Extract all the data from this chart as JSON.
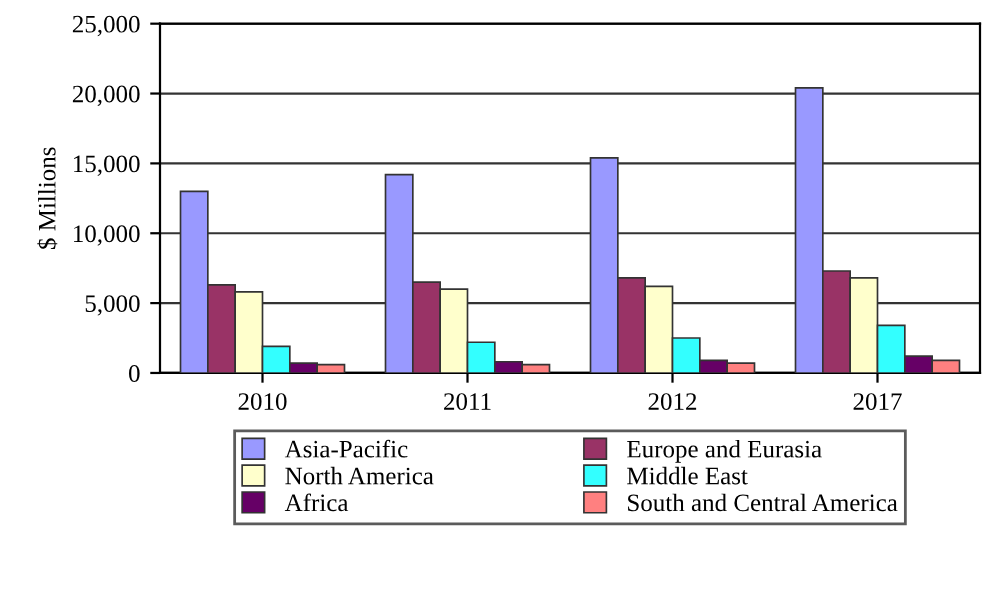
{
  "chart_data": {
    "type": "bar",
    "ylabel": "$ Millions",
    "categories": [
      "2010",
      "2011",
      "2012",
      "2017"
    ],
    "series": [
      {
        "name": "Asia-Pacific",
        "color": "#9999ff",
        "values": [
          13000,
          14200,
          15400,
          20400
        ]
      },
      {
        "name": "Europe and Eurasia",
        "color": "#993366",
        "values": [
          6300,
          6500,
          6800,
          7300
        ]
      },
      {
        "name": "North America",
        "color": "#ffffcc",
        "values": [
          5800,
          6000,
          6200,
          6800
        ]
      },
      {
        "name": "Middle East",
        "color": "#33ffff",
        "values": [
          1900,
          2200,
          2500,
          3400
        ]
      },
      {
        "name": "Africa",
        "color": "#660066",
        "values": [
          700,
          800,
          900,
          1200
        ]
      },
      {
        "name": "South and Central America",
        "color": "#ff8080",
        "values": [
          600,
          600,
          700,
          900
        ]
      }
    ],
    "ylim": [
      0,
      25000
    ],
    "yticks": [
      {
        "value": 0,
        "label": "0"
      },
      {
        "value": 5000,
        "label": "5,000"
      },
      {
        "value": 10000,
        "label": "10,000"
      },
      {
        "value": 15000,
        "label": "15,000"
      },
      {
        "value": 20000,
        "label": "20,000"
      },
      {
        "value": 25000,
        "label": "25,000"
      }
    ],
    "grid": "y",
    "legend": "bottom"
  }
}
